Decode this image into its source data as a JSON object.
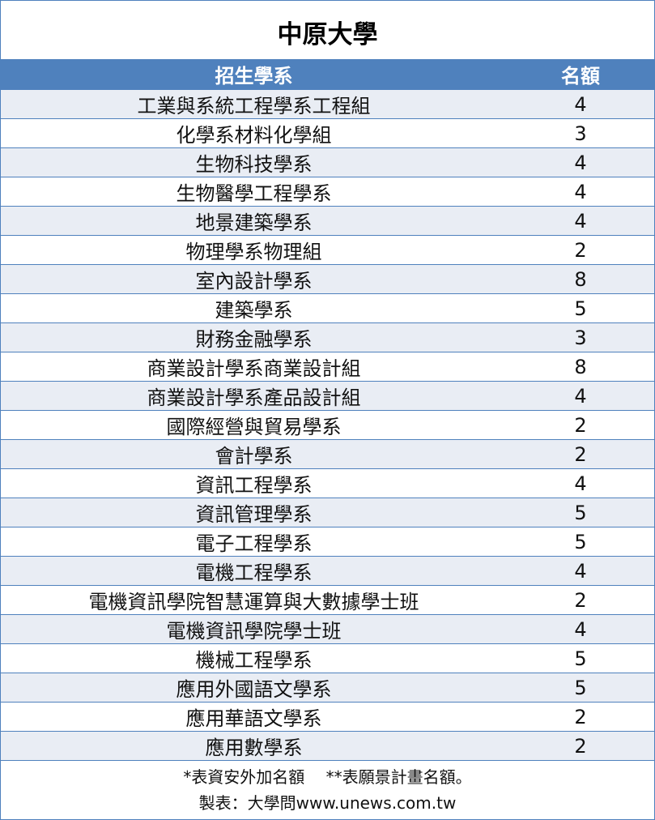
{
  "title": "中原大學",
  "header": {
    "department": "招生學系",
    "quota": "名額"
  },
  "rows": [
    {
      "department": "工業與系統工程學系工程組",
      "quota": "4"
    },
    {
      "department": "化學系材料化學組",
      "quota": "3"
    },
    {
      "department": "生物科技學系",
      "quota": "4"
    },
    {
      "department": "生物醫學工程學系",
      "quota": "4"
    },
    {
      "department": "地景建築學系",
      "quota": "4"
    },
    {
      "department": "物理學系物理組",
      "quota": "2"
    },
    {
      "department": "室內設計學系",
      "quota": "8"
    },
    {
      "department": "建築學系",
      "quota": "5"
    },
    {
      "department": "財務金融學系",
      "quota": "3"
    },
    {
      "department": "商業設計學系商業設計組",
      "quota": "8"
    },
    {
      "department": "商業設計學系產品設計組",
      "quota": "4"
    },
    {
      "department": "國際經營與貿易學系",
      "quota": "2"
    },
    {
      "department": "會計學系",
      "quota": "2"
    },
    {
      "department": "資訊工程學系",
      "quota": "4"
    },
    {
      "department": "資訊管理學系",
      "quota": "5"
    },
    {
      "department": "電子工程學系",
      "quota": "5"
    },
    {
      "department": "電機工程學系",
      "quota": "4"
    },
    {
      "department": "電機資訊學院智慧運算與大數據學士班",
      "quota": "2"
    },
    {
      "department": "電機資訊學院學士班",
      "quota": "4"
    },
    {
      "department": "機械工程學系",
      "quota": "5"
    },
    {
      "department": "應用外國語文學系",
      "quota": "5"
    },
    {
      "department": "應用華語文學系",
      "quota": "2"
    },
    {
      "department": "應用數學系",
      "quota": "2"
    }
  ],
  "footer": {
    "note": "*表資安外加名額　 **表願景計畫名額。",
    "credit": "製表：大學問www.unews.com.tw"
  },
  "colors": {
    "header_bg": "#4f81bd",
    "stripe": "#e9edf4",
    "border": "#4f81bd"
  }
}
